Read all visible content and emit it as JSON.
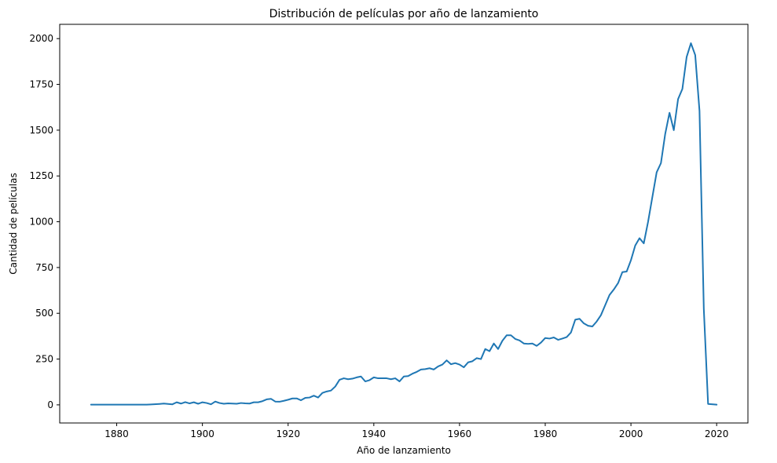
{
  "chart_data": {
    "type": "line",
    "title": "Distribución de películas por año de lanzamiento",
    "xlabel": "Año de lanzamiento",
    "ylabel": "Cantidad de películas",
    "xlim": [
      1866.7,
      2027.3
    ],
    "ylim": [
      -99,
      2078
    ],
    "xticks": [
      1880,
      1900,
      1920,
      1940,
      1960,
      1980,
      2000,
      2020
    ],
    "yticks": [
      0,
      250,
      500,
      750,
      1000,
      1250,
      1500,
      1750,
      2000
    ],
    "grid": false,
    "line_color": "#1f77b4",
    "series": [
      {
        "x": [
          1874,
          1878,
          1883,
          1887,
          1888,
          1890,
          1891,
          1892,
          1893,
          1894,
          1895,
          1896,
          1897,
          1898,
          1899,
          1900,
          1901,
          1902,
          1903,
          1904,
          1905,
          1906,
          1907,
          1908,
          1909,
          1910,
          1911,
          1912,
          1913,
          1914,
          1915,
          1916,
          1917,
          1918,
          1919,
          1920,
          1921,
          1922,
          1923,
          1924,
          1925,
          1926,
          1927,
          1928,
          1929,
          1930,
          1931,
          1932,
          1933,
          1934,
          1935,
          1936,
          1937,
          1938,
          1939,
          1940,
          1941,
          1942,
          1943,
          1944,
          1945,
          1946,
          1947,
          1948,
          1949,
          1950,
          1951,
          1952,
          1953,
          1954,
          1955,
          1956,
          1957,
          1958,
          1959,
          1960,
          1961,
          1962,
          1963,
          1964,
          1965,
          1966,
          1967,
          1968,
          1969,
          1970,
          1971,
          1972,
          1973,
          1974,
          1975,
          1976,
          1977,
          1978,
          1979,
          1980,
          1981,
          1982,
          1983,
          1984,
          1985,
          1986,
          1987,
          1988,
          1989,
          1990,
          1991,
          1992,
          1993,
          1994,
          1995,
          1996,
          1997,
          1998,
          1999,
          2000,
          2001,
          2002,
          2003,
          2004,
          2005,
          2006,
          2007,
          2008,
          2009,
          2010,
          2011,
          2012,
          2013,
          2014,
          2015,
          2016,
          2017,
          2018,
          2020
        ],
        "values": [
          1,
          1,
          1,
          1,
          2,
          5,
          7,
          5,
          3,
          14,
          7,
          15,
          8,
          14,
          6,
          14,
          10,
          3,
          18,
          10,
          6,
          8,
          7,
          6,
          10,
          8,
          7,
          14,
          14,
          20,
          30,
          33,
          18,
          17,
          22,
          28,
          35,
          35,
          25,
          38,
          40,
          50,
          40,
          65,
          73,
          78,
          100,
          137,
          145,
          140,
          143,
          150,
          155,
          128,
          135,
          150,
          145,
          145,
          145,
          140,
          145,
          128,
          155,
          157,
          170,
          180,
          193,
          195,
          200,
          193,
          210,
          220,
          243,
          222,
          228,
          220,
          205,
          232,
          238,
          255,
          250,
          305,
          293,
          335,
          305,
          350,
          380,
          380,
          360,
          352,
          335,
          333,
          335,
          322,
          340,
          365,
          362,
          368,
          355,
          362,
          370,
          395,
          465,
          470,
          445,
          432,
          428,
          455,
          490,
          545,
          600,
          630,
          665,
          725,
          728,
          790,
          870,
          910,
          882,
          1000,
          1135,
          1270,
          1320,
          1480,
          1595,
          1500,
          1670,
          1725,
          1900,
          1975,
          1910,
          1605,
          525,
          5,
          1
        ]
      }
    ]
  }
}
